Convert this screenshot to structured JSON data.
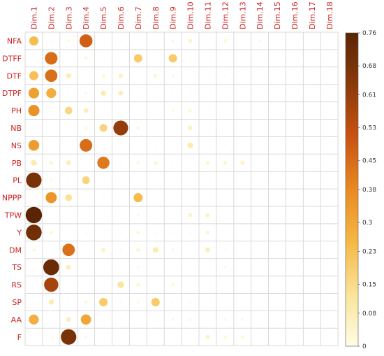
{
  "chart_data": {
    "type": "heatmap",
    "style": "correlation-circle plot (circle size and color encode value)",
    "columns": [
      "Dim.1",
      "Dim.2",
      "Dim.3",
      "Dim.4",
      "Dim.5",
      "Dim.6",
      "Dim.7",
      "Dim.8",
      "Dim.9",
      "Dim.10",
      "Dim.11",
      "Dim.12",
      "Dim.13",
      "Dim.14",
      "Dim.15",
      "Dim.16",
      "Dim.17",
      "Dim.18"
    ],
    "rows": [
      "NFA",
      "DTFF",
      "DTF",
      "DTPF",
      "PH",
      "NB",
      "NS",
      "PB",
      "PL",
      "NPPP",
      "TPW",
      "Y",
      "DM",
      "TS",
      "RS",
      "SP",
      "AA",
      "F"
    ],
    "values": [
      [
        0.24,
        0.01,
        0.02,
        0.48,
        0.0,
        0.01,
        0.0,
        0.0,
        0.02,
        0.05,
        0.01,
        0.03,
        0.0,
        0.02,
        0.0,
        0.0,
        0.0,
        0.0
      ],
      [
        0.01,
        0.45,
        0.0,
        0.03,
        0.0,
        0.0,
        0.2,
        0.0,
        0.2,
        0.0,
        0.0,
        0.0,
        0.0,
        0.0,
        0.0,
        0.0,
        0.0,
        0.0
      ],
      [
        0.23,
        0.44,
        0.08,
        0.01,
        0.03,
        0.06,
        0.01,
        0.04,
        0.02,
        0.01,
        0.01,
        0.01,
        0.0,
        0.0,
        0.0,
        0.01,
        0.0,
        0.0
      ],
      [
        0.32,
        0.28,
        0.01,
        0.02,
        0.08,
        0.07,
        0.01,
        0.0,
        0.01,
        0.01,
        0.0,
        0.0,
        0.0,
        0.0,
        0.01,
        0.0,
        0.0,
        0.0
      ],
      [
        0.36,
        0.01,
        0.16,
        0.07,
        0.01,
        0.01,
        0.0,
        0.0,
        0.02,
        0.03,
        0.01,
        0.0,
        0.0,
        0.0,
        0.0,
        0.0,
        0.0,
        0.0
      ],
      [
        0.0,
        0.0,
        0.01,
        0.02,
        0.17,
        0.62,
        0.03,
        0.0,
        0.0,
        0.06,
        0.0,
        0.0,
        0.0,
        0.0,
        0.0,
        0.0,
        0.0,
        0.0
      ],
      [
        0.33,
        0.0,
        0.0,
        0.45,
        0.0,
        0.0,
        0.0,
        0.01,
        0.01,
        0.09,
        0.0,
        0.01,
        0.0,
        0.0,
        0.0,
        0.0,
        0.0,
        0.0
      ],
      [
        0.09,
        0.04,
        0.07,
        0.01,
        0.42,
        0.01,
        0.03,
        0.04,
        0.01,
        0.01,
        0.04,
        0.04,
        0.05,
        0.0,
        0.0,
        0.0,
        0.0,
        0.0
      ],
      [
        0.68,
        0.02,
        0.01,
        0.17,
        0.0,
        0.0,
        0.0,
        0.0,
        0.0,
        0.01,
        0.0,
        0.0,
        0.0,
        0.0,
        0.0,
        0.0,
        0.0,
        0.0
      ],
      [
        0.01,
        0.35,
        0.13,
        0.01,
        0.01,
        0.0,
        0.24,
        0.0,
        0.0,
        0.0,
        0.0,
        0.0,
        0.0,
        0.0,
        0.0,
        0.0,
        0.0,
        0.0
      ],
      [
        0.76,
        0.0,
        0.0,
        0.0,
        0.0,
        0.0,
        0.02,
        0.0,
        0.0,
        0.05,
        0.05,
        0.0,
        0.0,
        0.0,
        0.0,
        0.0,
        0.0,
        0.0
      ],
      [
        0.7,
        0.03,
        0.01,
        0.01,
        0.0,
        0.01,
        0.03,
        0.01,
        0.01,
        0.01,
        0.04,
        0.0,
        0.0,
        0.0,
        0.0,
        0.0,
        0.0,
        0.0
      ],
      [
        0.03,
        0.0,
        0.44,
        0.0,
        0.05,
        0.01,
        0.04,
        0.09,
        0.02,
        0.01,
        0.07,
        0.01,
        0.0,
        0.0,
        0.0,
        0.0,
        0.0,
        0.0
      ],
      [
        0.0,
        0.72,
        0.07,
        0.0,
        0.0,
        0.0,
        0.02,
        0.0,
        0.0,
        0.0,
        0.0,
        0.02,
        0.0,
        0.0,
        0.0,
        0.0,
        0.0,
        0.0
      ],
      [
        0.0,
        0.58,
        0.0,
        0.0,
        0.0,
        0.12,
        0.04,
        0.0,
        0.03,
        0.0,
        0.0,
        0.0,
        0.0,
        0.0,
        0.0,
        0.0,
        0.0,
        0.0
      ],
      [
        0.01,
        0.08,
        0.01,
        0.03,
        0.2,
        0.01,
        0.02,
        0.2,
        0.01,
        0.01,
        0.0,
        0.0,
        0.0,
        0.0,
        0.0,
        0.0,
        0.0,
        0.0
      ],
      [
        0.28,
        0.01,
        0.07,
        0.3,
        0.0,
        0.01,
        0.0,
        0.0,
        0.02,
        0.02,
        0.01,
        0.02,
        0.02,
        0.0,
        0.0,
        0.0,
        0.0,
        0.0
      ],
      [
        0.0,
        0.01,
        0.68,
        0.02,
        0.0,
        0.0,
        0.0,
        0.0,
        0.0,
        0.0,
        0.05,
        0.03,
        0.03,
        0.0,
        0.0,
        0.0,
        0.0,
        0.0
      ]
    ],
    "colorbar": {
      "min": 0,
      "max": 0.76,
      "ticks": [
        0.76,
        0.68,
        0.61,
        0.53,
        0.45,
        0.38,
        0.3,
        0.23,
        0.15,
        0.08,
        0
      ],
      "tick_labels": [
        "0.76",
        "0.68",
        "0.61",
        "0.53",
        "0.45",
        "0.38",
        "0.3",
        "0.23",
        "0.15",
        "0.08",
        "0"
      ],
      "colors": [
        "#fffde4",
        "#fbe39a",
        "#f5b845",
        "#e88a22",
        "#c95312",
        "#8b3a0a",
        "#5a2505"
      ]
    },
    "grid": true,
    "legend": "right (continuous color bar)"
  }
}
